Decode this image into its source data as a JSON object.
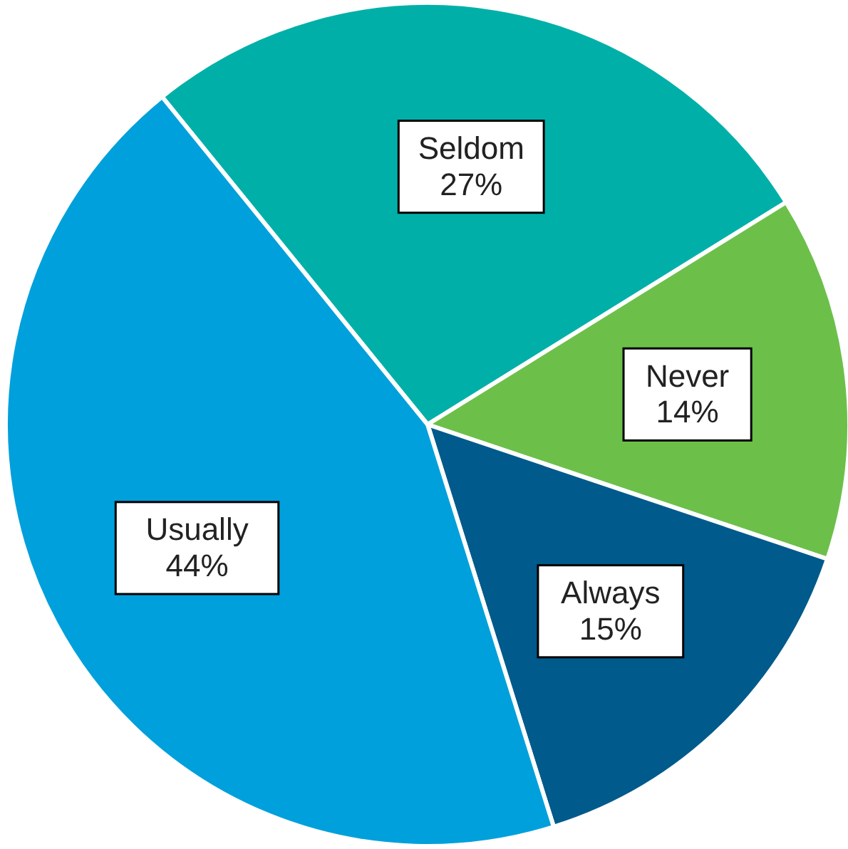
{
  "chart_data": {
    "type": "pie",
    "categories": [
      "Seldom",
      "Never",
      "Always",
      "Usually"
    ],
    "values": [
      27,
      14,
      15,
      44
    ],
    "colors": [
      "#00b0a8",
      "#6cc04a",
      "#005a8c",
      "#00a0dc"
    ],
    "value_labels": [
      "27%",
      "14%",
      "15%",
      "44%"
    ]
  }
}
